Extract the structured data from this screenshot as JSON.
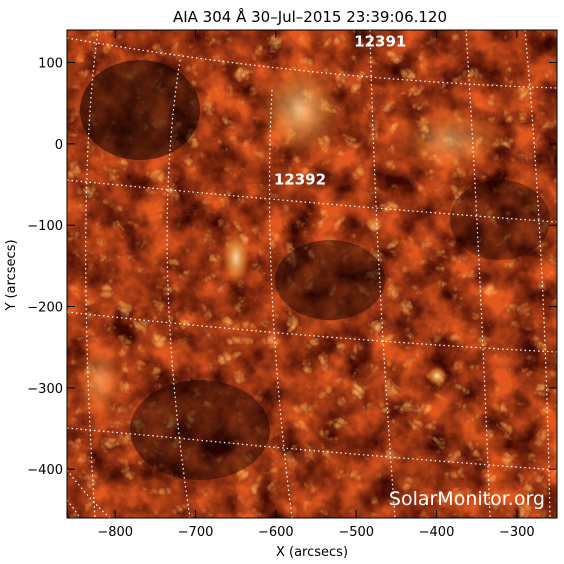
{
  "title": "AIA 304 Å 30–Jul–2015 23:39:06.120",
  "xlabel": "X (arcsecs)",
  "ylabel": "Y (arcsecs)",
  "x_ticks": [
    "−800",
    "−700",
    "−600",
    "−500",
    "−400",
    "−300"
  ],
  "y_ticks": [
    "100",
    "0",
    "−100",
    "−200",
    "−300",
    "−400"
  ],
  "x_tick_values": [
    -800,
    -700,
    -600,
    -500,
    -400,
    -300
  ],
  "y_tick_values": [
    100,
    0,
    -100,
    -200,
    -300,
    -400
  ],
  "xlim": [
    -860,
    -250
  ],
  "ylim": [
    -460,
    140
  ],
  "active_regions": [
    {
      "label": "12391",
      "x": -470,
      "y": 120
    },
    {
      "label": "12392",
      "x": -570,
      "y": -50
    }
  ],
  "watermark": "SolarMonitor.org",
  "colors": {
    "bright": "#ffd27a",
    "mid": "#c8361a",
    "dark": "#1a0200",
    "grid": "#ffffff"
  }
}
